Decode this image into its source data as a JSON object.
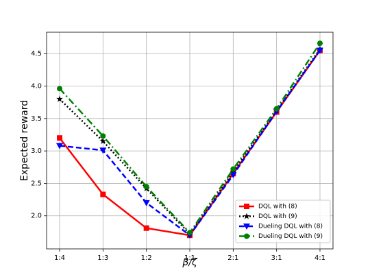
{
  "chart_data": {
    "type": "line",
    "categories": [
      "1:4",
      "1:3",
      "1:2",
      "1:1",
      "2:1",
      "3:1",
      "4:1"
    ],
    "x_label": "β/ζ",
    "y_label": "Expected reward",
    "ylim": [
      1.49,
      4.83
    ],
    "yticks": [
      {
        "value": 2,
        "label": "2.0"
      },
      2.5,
      {
        "value": 3,
        "label": "3.0"
      },
      3.5,
      {
        "value": 4,
        "label": "4.0"
      },
      4.5
    ],
    "grid": true,
    "legend": "lower right",
    "series": [
      {
        "name": "DQL with (8)",
        "color": "#ff0000",
        "dash": "solid",
        "marker": "square",
        "values": [
          3.2,
          2.33,
          1.81,
          1.7,
          2.65,
          3.6,
          4.55
        ]
      },
      {
        "name": "DQL with (9)",
        "color": "#000000",
        "dash": "dotted",
        "marker": "star",
        "values": [
          3.8,
          3.15,
          2.42,
          1.72,
          2.68,
          3.62,
          4.57
        ]
      },
      {
        "name": "Dueling DQL with (8)",
        "color": "#0000ff",
        "dash": "dashed",
        "marker": "triangle-down",
        "values": [
          3.08,
          3.01,
          2.2,
          1.7,
          2.63,
          3.61,
          4.55
        ]
      },
      {
        "name": "Dueling DQL with (9)",
        "color": "#008000",
        "dash": "dashdot",
        "marker": "circle",
        "values": [
          3.96,
          3.23,
          2.45,
          1.74,
          2.72,
          3.65,
          4.66
        ]
      }
    ]
  }
}
